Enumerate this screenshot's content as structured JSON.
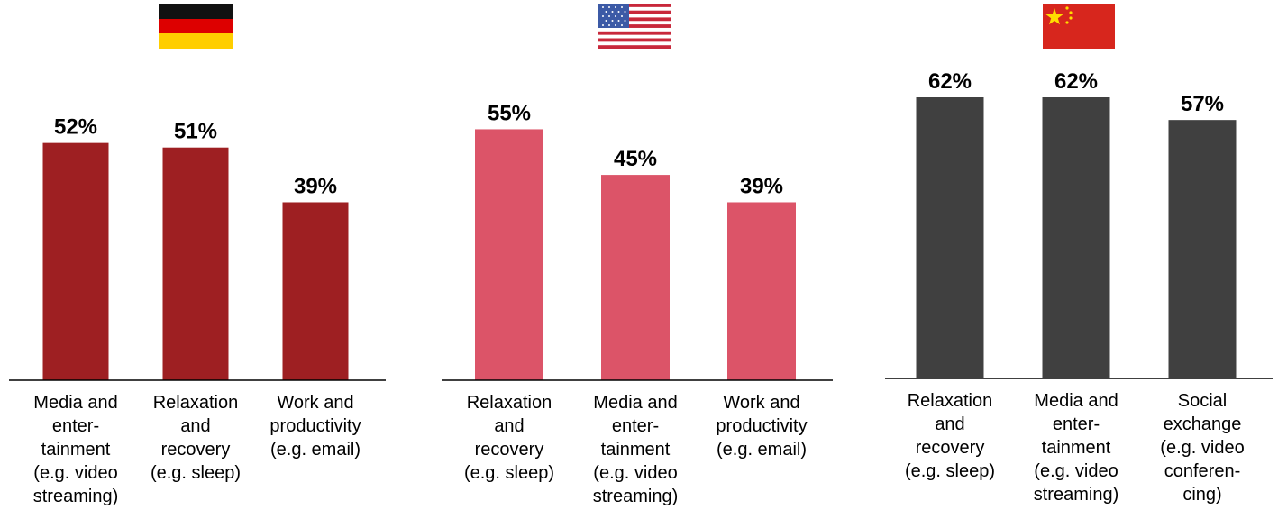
{
  "chart_data": [
    {
      "type": "bar",
      "country": "Germany",
      "flag_icon": "germany-flag-icon",
      "color": "#9e1f22",
      "categories": [
        [
          "Media and",
          "enter-",
          "tainment",
          "(e.g. video",
          "streaming)"
        ],
        [
          "Relaxation",
          "and",
          "recovery",
          "(e.g. sleep)"
        ],
        [
          "Work and",
          "productivity",
          "(e.g. email)"
        ]
      ],
      "values": [
        52,
        51,
        39
      ],
      "value_labels": [
        "52%",
        "51%",
        "39%"
      ],
      "ylim": [
        0,
        62
      ]
    },
    {
      "type": "bar",
      "country": "USA",
      "flag_icon": "usa-flag-icon",
      "color": "#dc5468",
      "categories": [
        [
          "Relaxation",
          "and",
          "recovery",
          "(e.g. sleep)"
        ],
        [
          "Media and",
          "enter-",
          "tainment",
          "(e.g. video",
          "streaming)"
        ],
        [
          "Work and",
          "productivity",
          "(e.g. email)"
        ]
      ],
      "values": [
        55,
        45,
        39
      ],
      "value_labels": [
        "55%",
        "45%",
        "39%"
      ],
      "ylim": [
        0,
        62
      ]
    },
    {
      "type": "bar",
      "country": "China",
      "flag_icon": "china-flag-icon",
      "color": "#404040",
      "categories": [
        [
          "Relaxation",
          "and",
          "recovery",
          "(e.g. sleep)"
        ],
        [
          "Media and",
          "enter-",
          "tainment",
          "(e.g. video",
          "streaming)"
        ],
        [
          "Social",
          "exchange",
          "(e.g. video",
          "conferen-",
          "cing)"
        ]
      ],
      "values": [
        62,
        62,
        57
      ],
      "value_labels": [
        "62%",
        "62%",
        "57%"
      ],
      "ylim": [
        0,
        62
      ]
    }
  ]
}
